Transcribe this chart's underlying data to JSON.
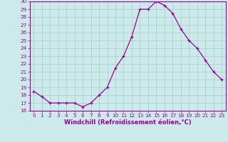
{
  "hours": [
    0,
    1,
    2,
    3,
    4,
    5,
    6,
    7,
    8,
    9,
    10,
    11,
    12,
    13,
    14,
    15,
    16,
    17,
    18,
    19,
    20,
    21,
    22,
    23
  ],
  "values": [
    18.5,
    17.8,
    17.0,
    17.0,
    17.0,
    17.0,
    16.5,
    17.0,
    18.0,
    19.0,
    21.5,
    23.0,
    25.5,
    29.0,
    29.0,
    30.0,
    29.5,
    28.5,
    26.5,
    25.0,
    24.0,
    22.5,
    21.0,
    20.0
  ],
  "line_color": "#990099",
  "marker": "+",
  "marker_size": 3.5,
  "line_width": 0.9,
  "bg_color": "#cceaea",
  "grid_color": "#aacccc",
  "xlabel": "Windchill (Refroidissement éolien,°C)",
  "ylabel": "",
  "ylim": [
    16,
    30
  ],
  "yticks": [
    16,
    17,
    18,
    19,
    20,
    21,
    22,
    23,
    24,
    25,
    26,
    27,
    28,
    29,
    30
  ],
  "xlim": [
    -0.5,
    23.5
  ],
  "xticks": [
    0,
    1,
    2,
    3,
    4,
    5,
    6,
    7,
    8,
    9,
    10,
    11,
    12,
    13,
    14,
    15,
    16,
    17,
    18,
    19,
    20,
    21,
    22,
    23
  ],
  "tick_color": "#990099",
  "label_color": "#990099",
  "tick_fontsize": 5.2,
  "xlabel_fontsize": 6.0
}
